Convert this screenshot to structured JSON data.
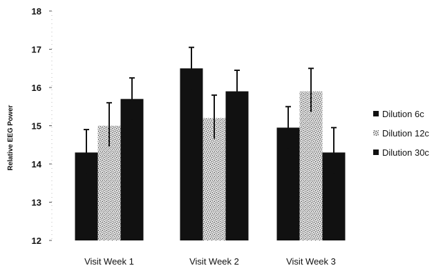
{
  "chart_data": {
    "type": "bar",
    "title": "",
    "xlabel": "",
    "ylabel": "Relative EEG Power",
    "ylim": [
      12,
      18
    ],
    "yticks": [
      12,
      13,
      14,
      15,
      16,
      17,
      18
    ],
    "categories": [
      "Visit Week 1",
      "Visit Week 2",
      "Visit Week 3"
    ],
    "series": [
      {
        "name": "Dilution 6c",
        "values": [
          14.3,
          16.5,
          14.95
        ],
        "errors": [
          0.6,
          0.55,
          0.55
        ],
        "color": "#111111"
      },
      {
        "name": "Dilution 12c",
        "values": [
          15.0,
          15.2,
          15.9
        ],
        "errors": [
          0.6,
          0.6,
          0.6
        ],
        "color": "#cfcfcf"
      },
      {
        "name": "Dilution 30c",
        "values": [
          15.7,
          15.9,
          14.3
        ],
        "errors": [
          0.55,
          0.55,
          0.65
        ],
        "color": "#111111"
      }
    ],
    "grid": false,
    "legend_position": "right"
  }
}
